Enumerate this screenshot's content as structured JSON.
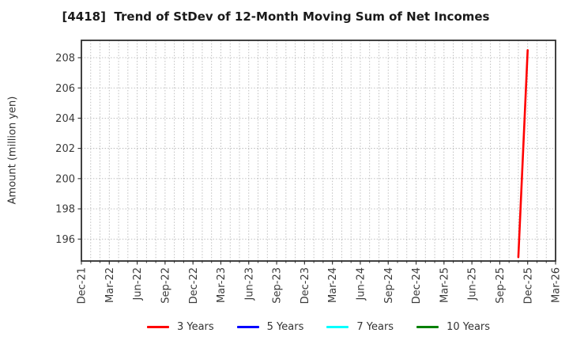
{
  "header": {
    "title": "[4418]  Trend of StDev of 12-Month Moving Sum of Net Incomes"
  },
  "chart_data": {
    "type": "line",
    "title": "[4418]  Trend of StDev of 12-Month Moving Sum of Net Incomes",
    "xlabel": "",
    "ylabel": "Amount (million yen)",
    "x_axis": {
      "start": "Dec-21",
      "end": "Mar-26",
      "tick_labels": [
        "Dec-21",
        "Mar-22",
        "Jun-22",
        "Sep-22",
        "Dec-22",
        "Mar-23",
        "Jun-23",
        "Sep-23",
        "Dec-23",
        "Mar-24",
        "Jun-24",
        "Sep-24",
        "Dec-24",
        "Mar-25",
        "Jun-25",
        "Sep-25",
        "Dec-25",
        "Mar-26"
      ],
      "minor_unit": "month",
      "major_unit_months": 3,
      "label_rotation_deg": 90
    },
    "y_axis": {
      "ticks": [
        196,
        198,
        200,
        202,
        204,
        206,
        208
      ],
      "lim": [
        194.55,
        209.15
      ]
    },
    "grid": {
      "visible": true,
      "style": "dotted",
      "color": "#b8b8b8"
    },
    "legend_position": "bottom",
    "series": [
      {
        "name": "3 Years",
        "color": "#ff0000",
        "points": [
          {
            "x": "Nov-25",
            "y": 194.8
          },
          {
            "x": "Dec-25",
            "y": 208.5
          }
        ]
      },
      {
        "name": "5 Years",
        "color": "#0000ff",
        "points": []
      },
      {
        "name": "7 Years",
        "color": "#00ffff",
        "points": []
      },
      {
        "name": "10 Years",
        "color": "#008000",
        "points": []
      }
    ]
  },
  "legend": {
    "items": [
      {
        "label": "3 Years",
        "color": "#ff0000"
      },
      {
        "label": "5 Years",
        "color": "#0000ff"
      },
      {
        "label": "7 Years",
        "color": "#00ffff"
      },
      {
        "label": "10 Years",
        "color": "#008000"
      }
    ]
  },
  "colors": {
    "axis": "#2e2e2e",
    "tick_label": "#3a3a3a",
    "background": "#ffffff"
  }
}
